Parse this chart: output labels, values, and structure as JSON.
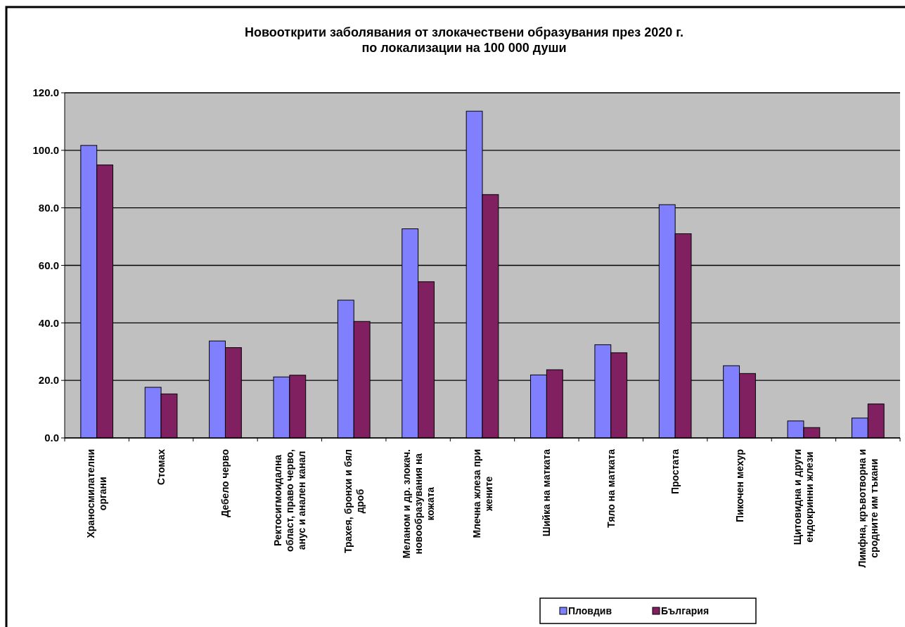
{
  "chart_data": {
    "type": "bar",
    "title": "Новооткрити заболявания от злокачествени образувания през 2020 г. по локализации на 100 000 души",
    "categories": [
      "Храносмилателни органи",
      "Стомах",
      "Дебело черво",
      "Ректосигмоидална област, право черво, анус и анален канал",
      "Трахея, бронхи и бял дроб",
      "Меланом и др. злокач. новообразувания на кожата",
      "Млечна жлеза при жените",
      "Шийка на матката",
      "Тяло на матката",
      "Простата",
      "Пикочен мехур",
      "Щитовидна и други ендокринни жлези",
      "Лимфна, кръвотворна и сродните им тъкани"
    ],
    "series": [
      {
        "name": "Пловдив",
        "color": "#8080ff",
        "values": [
          101.7,
          17.6,
          33.7,
          21.2,
          47.9,
          72.7,
          113.6,
          21.9,
          32.4,
          81.1,
          25.1,
          5.9,
          6.9
        ]
      },
      {
        "name": "България",
        "color": "#802060",
        "values": [
          94.9,
          15.3,
          31.4,
          21.8,
          40.5,
          54.3,
          84.6,
          23.7,
          29.6,
          71.0,
          22.4,
          3.6,
          11.8
        ]
      }
    ],
    "ylim": [
      0,
      120
    ],
    "yticks": [
      {
        "value": 0,
        "label": "0.0"
      },
      {
        "value": 20,
        "label": "20.0"
      },
      {
        "value": 40,
        "label": "40.0"
      },
      {
        "value": 60,
        "label": "60.0"
      },
      {
        "value": 80,
        "label": "80.0"
      },
      {
        "value": 100,
        "label": "100.0"
      },
      {
        "value": 120,
        "label": "120.0"
      }
    ],
    "grid": "y",
    "legend": "bottom"
  }
}
